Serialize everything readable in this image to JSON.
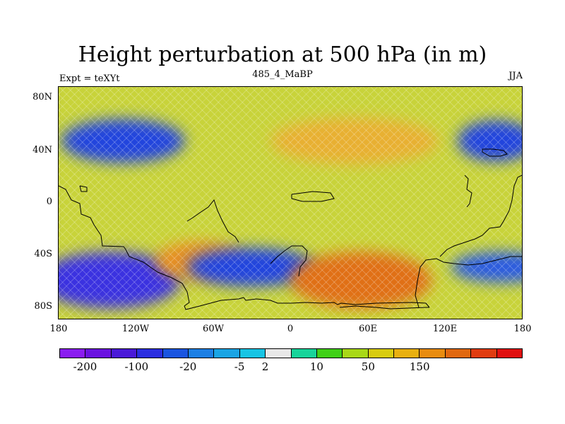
{
  "title": "Height perturbation at 500 hPa (in m)",
  "left_label": "Expt = teXYt",
  "center_label": "485_4_MaBP",
  "right_label": "JJA",
  "y_ticks": [
    "80N",
    "40N",
    "0",
    "40S",
    "80S"
  ],
  "x_ticks": [
    "180",
    "120W",
    "60W",
    "0",
    "60E",
    "120E",
    "180"
  ],
  "colorbar": {
    "colors": [
      "#8a1cf0",
      "#6a12e0",
      "#4a1ad8",
      "#2b2ee0",
      "#1a55e0",
      "#1c7fe4",
      "#1aa4e4",
      "#18c4e4",
      "#e8e8e8",
      "#18d49a",
      "#40d018",
      "#a8d818",
      "#d8cc10",
      "#e8b010",
      "#e88c10",
      "#e06810",
      "#e03c10",
      "#e01010"
    ],
    "labels": [
      "-200",
      "-100",
      "-20",
      "-5",
      "2",
      "10",
      "50",
      "150"
    ],
    "label_after_box": [
      1,
      3,
      5,
      7,
      8,
      10,
      12,
      14
    ]
  },
  "map": {
    "lon_range": [
      -180,
      180
    ],
    "lat_range": [
      -90,
      90
    ],
    "background_value": "#c8d33a",
    "anomalies": [
      {
        "lon": -130,
        "lat": 48,
        "rlon": 48,
        "rlat": 17,
        "color": "#2244dd"
      },
      {
        "lon": -140,
        "lat": -60,
        "rlon": 55,
        "rlat": 22,
        "color": "#3a30e0"
      },
      {
        "lon": -70,
        "lat": -45,
        "rlon": 35,
        "rlat": 15,
        "color": "#e89024"
      },
      {
        "lon": -30,
        "lat": -50,
        "rlon": 50,
        "rlat": 15,
        "color": "#2244dd"
      },
      {
        "lon": 55,
        "lat": -60,
        "rlon": 55,
        "rlat": 22,
        "color": "#e07018"
      },
      {
        "lon": 50,
        "lat": 48,
        "rlon": 65,
        "rlat": 18,
        "color": "#e8b030"
      },
      {
        "lon": 160,
        "lat": 48,
        "rlon": 30,
        "rlat": 16,
        "color": "#2244dd"
      },
      {
        "lon": 165,
        "lat": -50,
        "rlon": 40,
        "rlat": 12,
        "color": "#2b5ce0"
      }
    ]
  }
}
